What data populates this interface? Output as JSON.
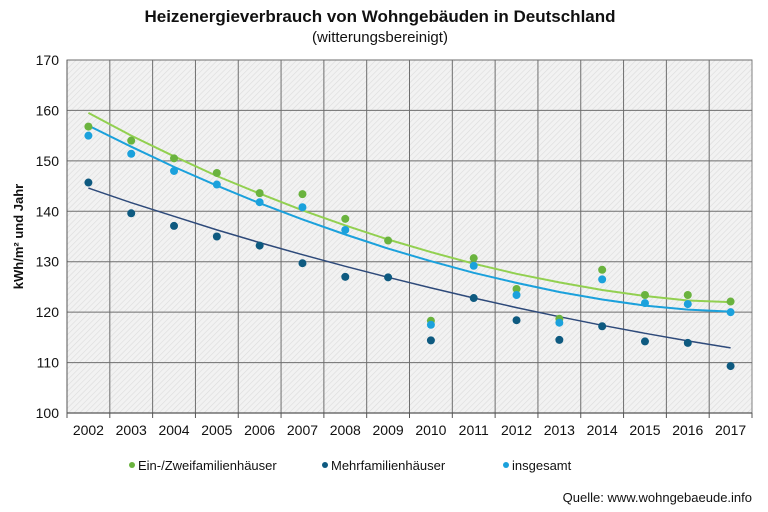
{
  "chart_data": {
    "type": "scatter",
    "title": "Heizenergieverbrauch  von Wohngebäuden  in Deutschland",
    "subtitle": "(witterungsbereinigt)",
    "xlabel": "",
    "ylabel": "kWh/m² und Jahr",
    "ylim": [
      100,
      170
    ],
    "yticks": [
      100,
      110,
      120,
      130,
      140,
      150,
      160,
      170
    ],
    "grid": true,
    "categories": [
      "2002",
      "2003",
      "2004",
      "2005",
      "2006",
      "2007",
      "2008",
      "2009",
      "2010",
      "2011",
      "2012",
      "2013",
      "2014",
      "2015",
      "2016",
      "2017"
    ],
    "series": [
      {
        "name": "Ein-/Zweifamilienhäuser",
        "color": "#6ab33e",
        "trend_color": "#92d050",
        "values": [
          156.8,
          154.0,
          150.5,
          147.6,
          143.6,
          143.4,
          138.5,
          134.2,
          118.3,
          130.7,
          124.6,
          118.7,
          128.4,
          123.4,
          123.4,
          122.1
        ],
        "trend": [
          159.5,
          155.0,
          150.9,
          147.0,
          143.5,
          140.2,
          137.2,
          134.4,
          131.9,
          129.6,
          127.6,
          125.9,
          124.4,
          123.2,
          122.3,
          122.0
        ]
      },
      {
        "name": "Mehrfamilienhäuser",
        "color": "#0e5a80",
        "trend_color": "#2e4a7a",
        "values": [
          145.7,
          139.6,
          137.1,
          135.0,
          133.2,
          129.7,
          127.0,
          126.9,
          114.4,
          122.8,
          118.4,
          114.5,
          117.2,
          114.2,
          113.9,
          109.3
        ],
        "trend": [
          144.6,
          141.7,
          139.0,
          136.3,
          133.8,
          131.4,
          129.1,
          126.9,
          124.8,
          122.8,
          120.9,
          119.1,
          117.4,
          115.8,
          114.3,
          112.9
        ]
      },
      {
        "name": "insgesamt",
        "color": "#1ba1dc",
        "trend_color": "#1ba1dc",
        "values": [
          155.0,
          151.4,
          148.0,
          145.3,
          141.8,
          140.8,
          136.3,
          null,
          117.5,
          129.2,
          123.4,
          117.9,
          126.5,
          121.8,
          121.6,
          120.0
        ],
        "trend": [
          157.0,
          152.8,
          148.8,
          145.1,
          141.6,
          138.4,
          135.4,
          132.6,
          130.1,
          127.8,
          125.8,
          124.0,
          122.5,
          121.3,
          120.5,
          120.1
        ]
      }
    ],
    "legend": "bottom",
    "source": "Quelle: www.wohngebaeude.info"
  }
}
